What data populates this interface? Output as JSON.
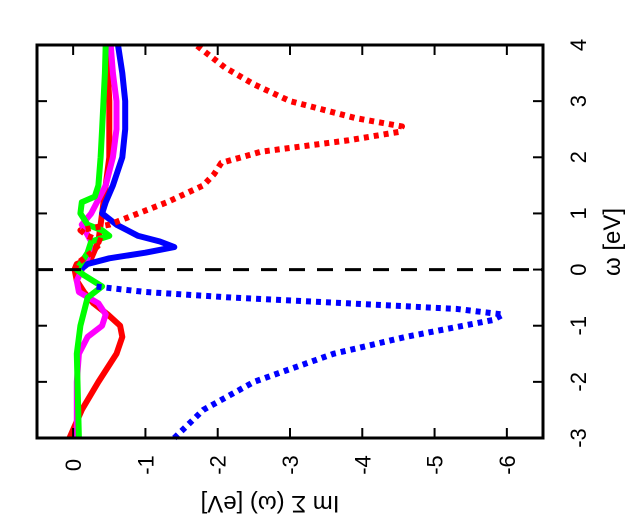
{
  "chart_data": {
    "type": "line",
    "orientation": "rotated-90-clockwise",
    "title": "",
    "xlabel": "ω [eV]",
    "ylabel": "Im Σ (ω) [eV]",
    "xlim": [
      -3,
      4
    ],
    "ylim": [
      -6.5,
      0.5
    ],
    "xticks": [
      "-3",
      "-2",
      "-1",
      "0",
      "1",
      "2",
      "3",
      "4"
    ],
    "yticks": [
      "0",
      "-1",
      "-2",
      "-3",
      "-4",
      "-5",
      "-6"
    ],
    "grid": false,
    "legend": "none",
    "reference_line": {
      "x": 0,
      "style": "dashed",
      "color": "#000000"
    },
    "series": [
      {
        "color": "#ff0000",
        "style": "solid",
        "x": [
          -3.0,
          -2.5,
          -2.0,
          -1.5,
          -1.2,
          -1.0,
          -0.8,
          -0.6,
          -0.4,
          -0.2,
          0.0,
          0.1,
          0.2,
          0.5,
          1.0,
          1.5,
          2.0,
          2.5,
          3.0,
          3.5,
          4.0
        ],
        "y": [
          0.05,
          -0.12,
          -0.35,
          -0.6,
          -0.68,
          -0.65,
          -0.48,
          -0.28,
          -0.15,
          -0.05,
          -0.02,
          -0.05,
          -0.25,
          -0.35,
          -0.4,
          -0.45,
          -0.5,
          -0.5,
          -0.5,
          -0.48,
          -0.45
        ]
      },
      {
        "color": "#ff00ff",
        "style": "solid",
        "x": [
          -3.0,
          -2.0,
          -1.5,
          -1.2,
          -1.0,
          -0.8,
          -0.6,
          -0.4,
          -0.2,
          0.0,
          0.2,
          0.5,
          0.8,
          1.0,
          1.5,
          2.0,
          2.5,
          3.0,
          3.5,
          4.0
        ],
        "y": [
          -0.05,
          -0.05,
          -0.08,
          -0.2,
          -0.4,
          -0.45,
          -0.35,
          -0.08,
          -0.05,
          -0.12,
          -0.2,
          -0.25,
          -0.12,
          -0.25,
          -0.45,
          -0.55,
          -0.6,
          -0.6,
          -0.55,
          -0.52
        ]
      },
      {
        "color": "#0000ff",
        "style": "solid",
        "x": [
          0.0,
          0.1,
          0.2,
          0.3,
          0.4,
          0.5,
          0.6,
          0.8,
          1.0,
          1.2,
          1.5,
          2.0,
          2.5,
          3.0,
          3.5,
          4.0
        ],
        "y": [
          -0.1,
          -0.2,
          -0.5,
          -1.0,
          -1.4,
          -1.2,
          -0.9,
          -0.6,
          -0.4,
          -0.45,
          -0.55,
          -0.68,
          -0.72,
          -0.72,
          -0.68,
          -0.62
        ]
      },
      {
        "color": "#00ff00",
        "style": "solid",
        "x": [
          -3.0,
          -2.0,
          -1.5,
          -1.0,
          -0.5,
          -0.3,
          -0.1,
          0.0,
          0.1,
          0.3,
          0.5,
          0.6,
          0.7,
          0.8,
          1.0,
          1.2,
          1.3,
          1.5,
          2.0,
          2.5,
          3.0,
          3.5,
          4.0
        ],
        "y": [
          -0.08,
          -0.06,
          -0.05,
          -0.1,
          -0.2,
          -0.4,
          -0.15,
          -0.05,
          -0.1,
          -0.2,
          -0.25,
          -0.5,
          -0.4,
          -0.2,
          -0.1,
          -0.12,
          -0.3,
          -0.35,
          -0.38,
          -0.4,
          -0.42,
          -0.44,
          -0.45
        ]
      },
      {
        "color": "#0000ff",
        "style": "dotted",
        "x": [
          -3.0,
          -2.5,
          -2.0,
          -1.5,
          -1.2,
          -1.0,
          -0.9,
          -0.8,
          -0.7,
          -0.6,
          -0.5,
          -0.4,
          -0.3
        ],
        "y": [
          -1.4,
          -1.8,
          -2.5,
          -3.6,
          -4.6,
          -5.4,
          -5.8,
          -5.95,
          -5.3,
          -3.8,
          -2.2,
          -1.0,
          -0.3
        ]
      },
      {
        "color": "#ff0000",
        "style": "dotted",
        "x": [
          0.0,
          0.1,
          0.3,
          0.5,
          0.6,
          0.7,
          0.8,
          1.0,
          1.2,
          1.5,
          1.7,
          1.9,
          2.1,
          2.3,
          2.45,
          2.55,
          2.7,
          3.0,
          3.3,
          3.6,
          3.8,
          4.0
        ],
        "y": [
          -0.02,
          -0.05,
          -0.25,
          -0.4,
          -0.2,
          -0.1,
          -0.5,
          -0.9,
          -1.3,
          -1.8,
          -1.95,
          -2.05,
          -2.6,
          -3.8,
          -4.5,
          -4.55,
          -3.9,
          -3.0,
          -2.5,
          -2.1,
          -1.9,
          -1.7
        ]
      }
    ]
  }
}
